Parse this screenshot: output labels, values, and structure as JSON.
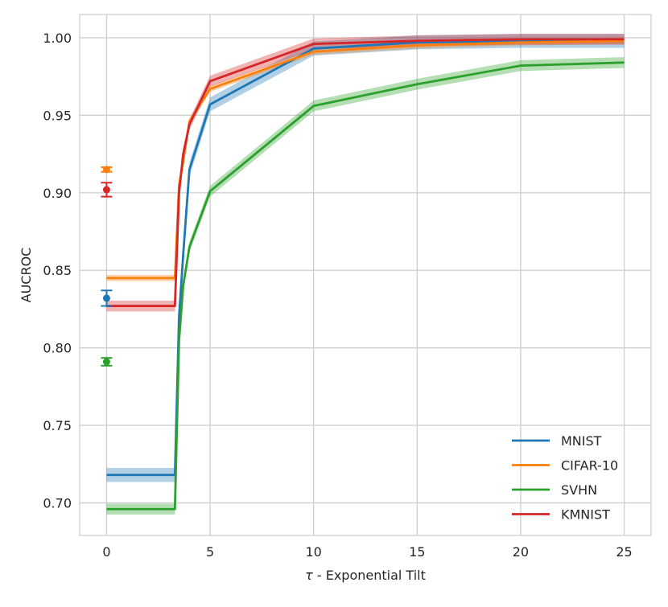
{
  "chart_data": {
    "type": "line",
    "title": "",
    "xlabel_symbol": "τ",
    "xlabel_text": " - Exponential Tilt",
    "ylabel": "AUCROC",
    "xlim": [
      -1.3,
      26.3
    ],
    "ylim": [
      0.679,
      1.015
    ],
    "xticks": [
      0,
      5,
      10,
      15,
      20,
      25
    ],
    "xtick_labels": [
      "0",
      "5",
      "10",
      "15",
      "20",
      "25"
    ],
    "yticks": [
      0.7,
      0.75,
      0.8,
      0.85,
      0.9,
      0.95,
      1.0
    ],
    "ytick_labels": [
      "0.70",
      "0.75",
      "0.80",
      "0.85",
      "0.90",
      "0.95",
      "1.00"
    ],
    "grid": true,
    "legend_position": "lower-right",
    "series": [
      {
        "name": "MNIST",
        "color": "#1f77b4",
        "x": [
          0,
          3.3,
          3.5,
          3.7,
          4,
          5,
          10,
          15,
          20,
          25
        ],
        "y": [
          0.718,
          0.718,
          0.82,
          0.86,
          0.915,
          0.957,
          0.993,
          0.997,
          0.998,
          0.998
        ],
        "band": 0.0045,
        "tau0_point": {
          "y": 0.832,
          "err": 0.005
        }
      },
      {
        "name": "CIFAR-10",
        "color": "#ff7f0e",
        "x": [
          0,
          3.3,
          3.5,
          3.7,
          4,
          5,
          10,
          15,
          20,
          25
        ],
        "y": [
          0.845,
          0.845,
          0.905,
          0.92,
          0.946,
          0.967,
          0.991,
          0.995,
          0.997,
          0.998
        ],
        "band": 0.002,
        "tau0_point": {
          "y": 0.915,
          "err": 0.0015
        }
      },
      {
        "name": "SVHN",
        "color": "#2ca02c",
        "x": [
          0,
          3.3,
          3.5,
          3.7,
          4,
          5,
          10,
          15,
          20,
          25
        ],
        "y": [
          0.696,
          0.696,
          0.805,
          0.84,
          0.865,
          0.901,
          0.956,
          0.97,
          0.982,
          0.984
        ],
        "band": 0.0035,
        "tau0_point": {
          "y": 0.791,
          "err": 0.0025
        }
      },
      {
        "name": "KMNIST",
        "color": "#d62728",
        "x": [
          0,
          3.3,
          3.5,
          3.7,
          4,
          5,
          10,
          15,
          20,
          25
        ],
        "y": [
          0.827,
          0.827,
          0.9,
          0.925,
          0.944,
          0.972,
          0.996,
          0.998,
          0.999,
          0.999
        ],
        "band": 0.0035,
        "tau0_point": {
          "y": 0.902,
          "err": 0.0045
        }
      }
    ]
  }
}
